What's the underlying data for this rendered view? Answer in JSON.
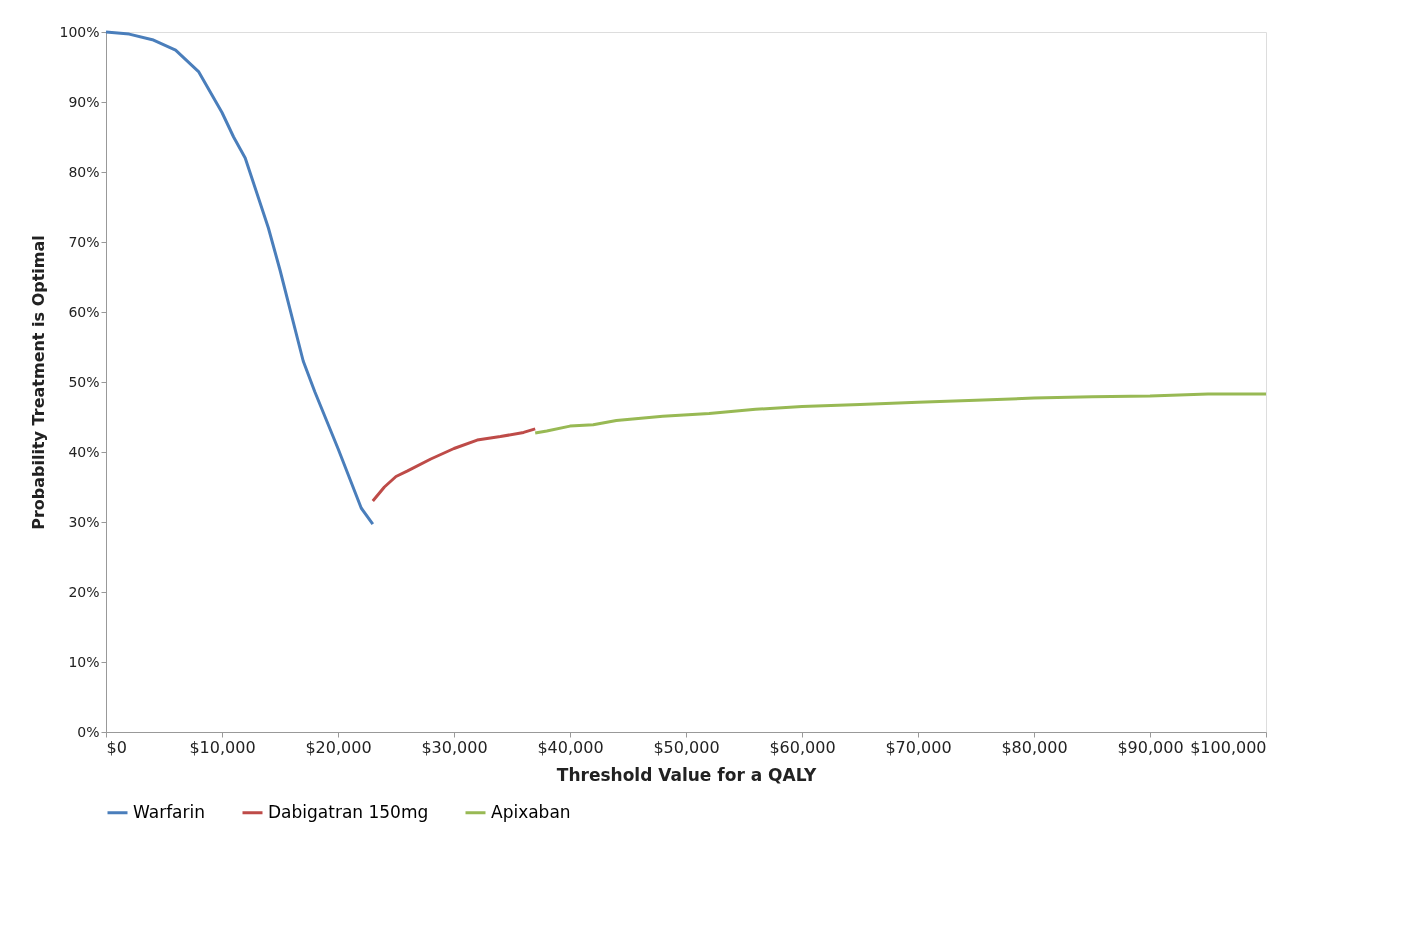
{
  "chart_data": {
    "type": "line",
    "xlabel": "Threshold Value for a QALY",
    "ylabel": "Probability Treatment is Optimal",
    "xlim": [
      0,
      100000
    ],
    "ylim": [
      0,
      100
    ],
    "xticks": [
      {
        "value": 0,
        "label": "$0"
      },
      {
        "value": 10000,
        "label": "$10,000"
      },
      {
        "value": 20000,
        "label": "$20,000"
      },
      {
        "value": 30000,
        "label": "$30,000"
      },
      {
        "value": 40000,
        "label": "$40,000"
      },
      {
        "value": 50000,
        "label": "$50,000"
      },
      {
        "value": 60000,
        "label": "$60,000"
      },
      {
        "value": 70000,
        "label": "$70,000"
      },
      {
        "value": 80000,
        "label": "$80,000"
      },
      {
        "value": 90000,
        "label": "$90,000"
      },
      {
        "value": 100000,
        "label": "$100,000"
      }
    ],
    "yticks": [
      {
        "value": 0,
        "label": "0%"
      },
      {
        "value": 10,
        "label": "10%"
      },
      {
        "value": 20,
        "label": "20%"
      },
      {
        "value": 30,
        "label": "30%"
      },
      {
        "value": 40,
        "label": "40%"
      },
      {
        "value": 50,
        "label": "50%"
      },
      {
        "value": 60,
        "label": "60%"
      },
      {
        "value": 70,
        "label": "70%"
      },
      {
        "value": 80,
        "label": "80%"
      },
      {
        "value": 90,
        "label": "90%"
      },
      {
        "value": 100,
        "label": "100%"
      }
    ],
    "grid": false,
    "legend": "bottom",
    "marker": "none",
    "line_style": "solid",
    "series": [
      {
        "name": "Warfarin",
        "color": "#4a7ebb",
        "x": [
          0,
          2000,
          4000,
          6000,
          8000,
          10000,
          11000,
          12000,
          14000,
          15000,
          17000,
          18000,
          20000,
          22000,
          23000
        ],
        "values": [
          100,
          99.7,
          98.9,
          97.4,
          94.3,
          88.5,
          85,
          82,
          72,
          66,
          53,
          48.6,
          40.5,
          32,
          29.7
        ]
      },
      {
        "name": "Dabigatran 150mg",
        "color": "#be4b48",
        "x": [
          23000,
          24000,
          25000,
          26000,
          28000,
          30000,
          32000,
          34000,
          36000,
          37000
        ],
        "values": [
          33,
          35,
          36.5,
          37.3,
          39,
          40.5,
          41.7,
          42.2,
          42.8,
          43.3
        ]
      },
      {
        "name": "Apixaban",
        "color": "#98b954",
        "x": [
          37000,
          38000,
          40000,
          42000,
          44000,
          48000,
          52000,
          56000,
          60000,
          65000,
          70000,
          75000,
          80000,
          85000,
          90000,
          95000,
          100000
        ],
        "values": [
          42.7,
          43,
          43.7,
          43.9,
          44.5,
          45.1,
          45.5,
          46.1,
          46.5,
          46.8,
          47.1,
          47.4,
          47.7,
          47.9,
          48.0,
          48.3,
          48.3
        ]
      }
    ]
  }
}
